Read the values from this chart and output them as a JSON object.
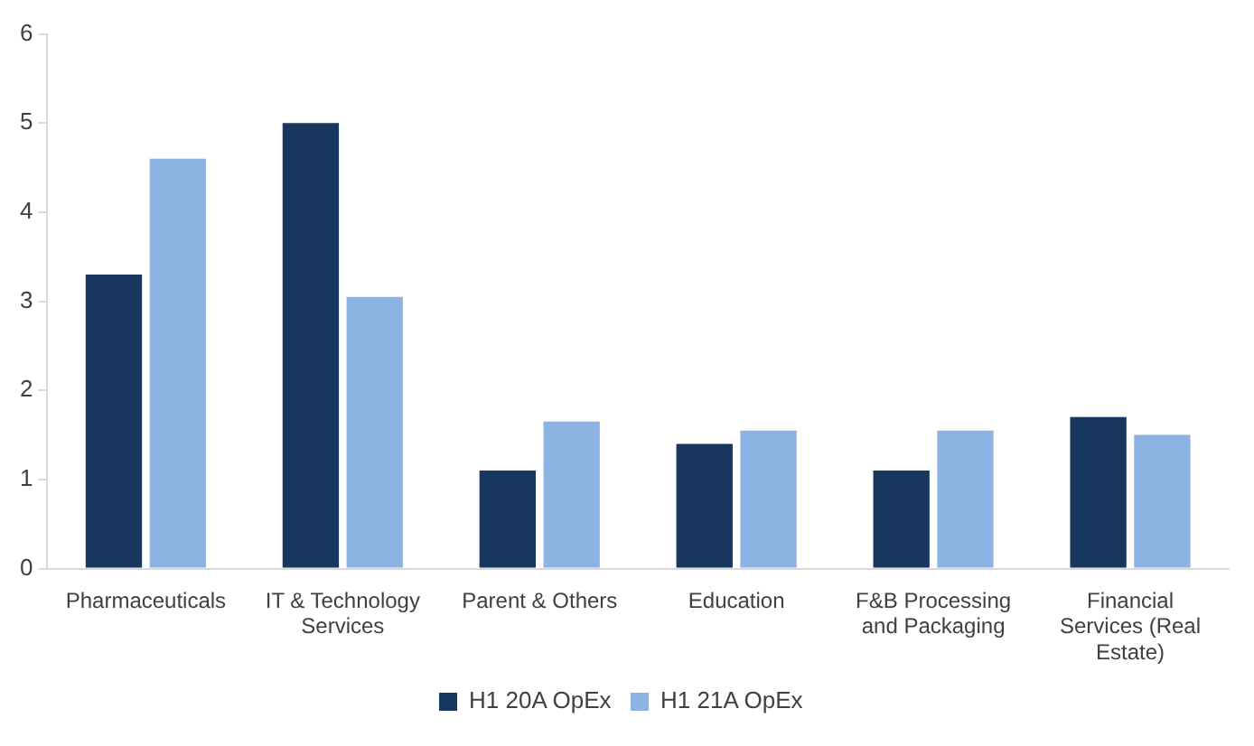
{
  "chart_data": {
    "type": "bar",
    "categories": [
      "Pharmaceuticals",
      "IT & Technology Services",
      "Parent & Others",
      "Education",
      "F&B Processing and Packaging",
      "Financial Services (Real Estate)"
    ],
    "series": [
      {
        "name": "H1 20A OpEx",
        "color": "#17375e",
        "values": [
          3.3,
          5.0,
          1.1,
          1.4,
          1.1,
          1.7
        ]
      },
      {
        "name": "H1 21A OpEx",
        "color": "#8db3e2",
        "values": [
          4.6,
          3.05,
          1.65,
          1.55,
          1.55,
          1.5
        ]
      }
    ],
    "ylim": [
      0,
      6
    ],
    "yticks": [
      0,
      1,
      2,
      3,
      4,
      5,
      6
    ],
    "grid": false,
    "legend": "bottom"
  }
}
